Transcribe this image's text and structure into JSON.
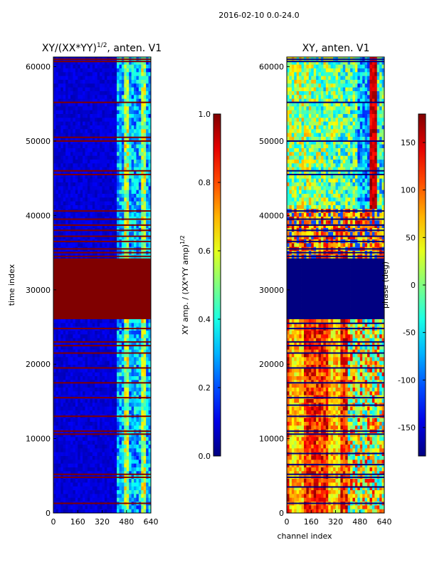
{
  "suptitle": "2016-02-10 0.0-24.0",
  "chart_data": [
    {
      "type": "heatmap",
      "title_main": "XY/(XX*YY)",
      "title_sup": "1/2",
      "title_tail": ", anten. V1",
      "xlabel": "",
      "ylabel": "time index",
      "xlim": [
        0,
        640
      ],
      "ylim": [
        0,
        61300
      ],
      "xticks": [
        "0",
        "160",
        "320",
        "480",
        "640"
      ],
      "yticks": [
        "0",
        "10000",
        "20000",
        "30000",
        "40000",
        "50000",
        "60000"
      ],
      "colorbar": {
        "label_main": "XY amp. / (XX*YY amp)",
        "label_sup": "1/2",
        "range": [
          0.0,
          1.0
        ],
        "ticks": [
          "0.0",
          "0.2",
          "0.4",
          "0.6",
          "0.8",
          "1.0"
        ],
        "colormap": "jet"
      },
      "saturated_time_band": [
        26300,
        34000
      ],
      "flagged_rows": [
        1300,
        4800,
        5200,
        10600,
        11000,
        13000,
        15500,
        17500,
        19500,
        21500,
        22500,
        23000,
        24800,
        34500,
        35000,
        35500,
        36500,
        37200,
        38000,
        38700,
        39500,
        40600,
        45500,
        46000,
        50000,
        50500,
        55200,
        60700,
        61000
      ],
      "bright_channel_range": [
        420,
        640
      ]
    },
    {
      "type": "heatmap",
      "title_main": "XY, anten. V1",
      "xlabel": "channel index",
      "ylabel": "",
      "xlim": [
        0,
        640
      ],
      "ylim": [
        0,
        61300
      ],
      "xticks": [
        "0",
        "160",
        "320",
        "480",
        "640"
      ],
      "yticks": [
        "0",
        "10000",
        "20000",
        "30000",
        "40000",
        "50000",
        "60000"
      ],
      "colorbar": {
        "label_main": "phase (deg)",
        "range": [
          -180,
          180
        ],
        "ticks": [
          "-150",
          "-100",
          "-50",
          "0",
          "50",
          "100",
          "150"
        ],
        "colormap": "jet"
      },
      "constant_time_band": [
        26300,
        34000
      ],
      "flagged_rows": [
        1300,
        3500,
        4800,
        5200,
        6500,
        8000,
        10600,
        11000,
        13000,
        14500,
        15500,
        17500,
        19500,
        21500,
        22500,
        23000,
        24800,
        25500,
        34500,
        35000,
        35500,
        36500,
        37200,
        38000,
        38700,
        39500,
        40600,
        45500,
        46000,
        50000,
        55200,
        60700,
        61000
      ]
    }
  ]
}
